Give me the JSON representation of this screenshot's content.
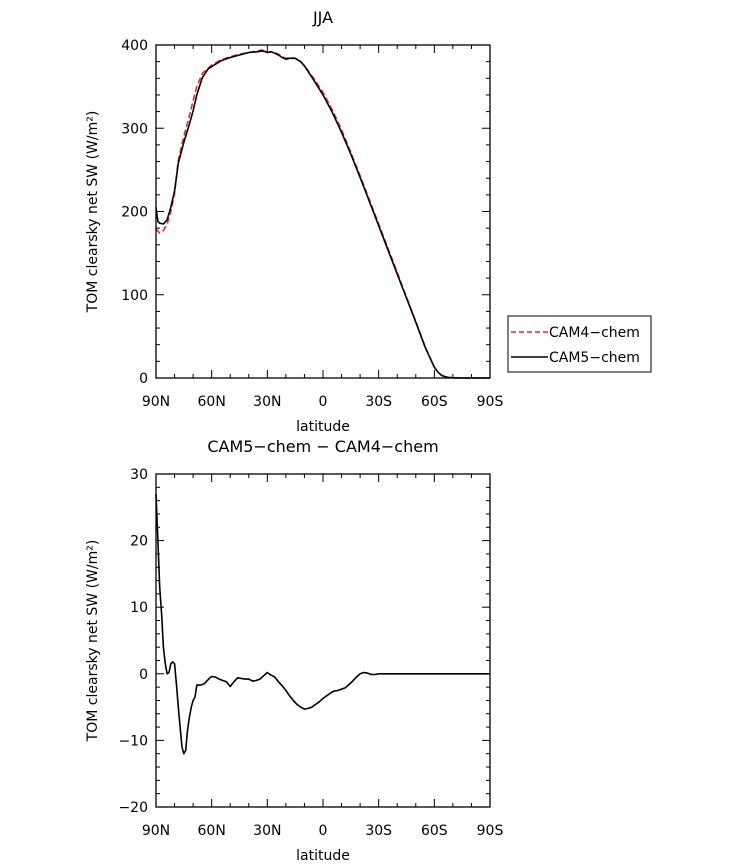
{
  "chart_data": [
    {
      "type": "line",
      "title": "JJA",
      "xlabel": "latitude",
      "ylabel": "TOM clearsky net SW (W/m²)",
      "xlim": [
        90,
        -90
      ],
      "ylim": [
        0,
        400
      ],
      "xticks": [
        {
          "value": 90,
          "label": "90N"
        },
        {
          "value": 60,
          "label": "60N"
        },
        {
          "value": 30,
          "label": "30N"
        },
        {
          "value": 0,
          "label": "0"
        },
        {
          "value": -30,
          "label": "30S"
        },
        {
          "value": -60,
          "label": "60S"
        },
        {
          "value": -90,
          "label": "90S"
        }
      ],
      "yticks": [
        {
          "value": 0,
          "label": "0"
        },
        {
          "value": 100,
          "label": "100"
        },
        {
          "value": 200,
          "label": "200"
        },
        {
          "value": 300,
          "label": "300"
        },
        {
          "value": 400,
          "label": "400"
        }
      ],
      "legend": "right",
      "series": [
        {
          "name": "CAM4−chem",
          "color": "#e8262b",
          "dash": "dashed",
          "x": [
            90,
            88,
            86,
            84,
            82,
            80,
            78,
            75,
            72,
            70,
            68,
            65,
            62,
            60,
            55,
            50,
            45,
            40,
            35,
            33,
            31,
            30,
            28,
            26,
            24,
            22,
            20,
            18,
            15,
            12,
            10,
            5,
            0,
            -5,
            -10,
            -15,
            -20,
            -25,
            -30,
            -35,
            -40,
            -45,
            -50,
            -55,
            -60,
            -62,
            -64,
            -66,
            -68,
            -70,
            -75,
            -80,
            -85,
            -90
          ],
          "y": [
            179,
            174,
            177,
            185,
            200,
            222,
            262,
            290,
            315,
            333,
            350,
            366,
            372,
            376,
            382,
            386,
            389,
            391,
            393,
            394,
            392,
            391,
            392,
            391,
            389,
            386,
            384,
            385,
            384,
            380,
            375,
            360,
            343,
            322,
            298,
            271,
            243,
            214,
            185,
            156,
            127,
            97,
            68,
            38,
            13,
            7,
            3,
            1.5,
            0.5,
            0.2,
            0,
            0,
            0,
            0
          ]
        },
        {
          "name": "CAM5−chem",
          "color": "#000000",
          "dash": "solid",
          "x": [
            90,
            89,
            88,
            86,
            84,
            82,
            80,
            78,
            75,
            72,
            70,
            68,
            65,
            62,
            60,
            55,
            50,
            45,
            40,
            35,
            33,
            31,
            30,
            28,
            26,
            24,
            22,
            20,
            18,
            15,
            12,
            10,
            5,
            0,
            -5,
            -10,
            -15,
            -20,
            -25,
            -30,
            -35,
            -40,
            -45,
            -50,
            -55,
            -60,
            -62,
            -64,
            -66,
            -68,
            -70,
            -75,
            -80,
            -85,
            -90
          ],
          "y": [
            205,
            188,
            186,
            185,
            190,
            205,
            225,
            258,
            283,
            305,
            321,
            340,
            361,
            371,
            374,
            381,
            385,
            388,
            391,
            392,
            393,
            392,
            391,
            392,
            390,
            388,
            385,
            383,
            384,
            384,
            380,
            375,
            358,
            340,
            319,
            295,
            269,
            241,
            212,
            183,
            154,
            125,
            96,
            67,
            37,
            13,
            7,
            3,
            1.5,
            0.5,
            0.2,
            0,
            0,
            0,
            0
          ]
        }
      ]
    },
    {
      "type": "line",
      "title": "CAM5−chem − CAM4−chem",
      "xlabel": "latitude",
      "ylabel": "TOM clearsky net SW (W/m²)",
      "xlim": [
        90,
        -90
      ],
      "ylim": [
        -20,
        30
      ],
      "xticks": [
        {
          "value": 90,
          "label": "90N"
        },
        {
          "value": 60,
          "label": "60N"
        },
        {
          "value": 30,
          "label": "30N"
        },
        {
          "value": 0,
          "label": "0"
        },
        {
          "value": -30,
          "label": "30S"
        },
        {
          "value": -60,
          "label": "60S"
        },
        {
          "value": -90,
          "label": "90S"
        }
      ],
      "yticks": [
        {
          "value": -20,
          "label": "−20"
        },
        {
          "value": -10,
          "label": "−10"
        },
        {
          "value": 0,
          "label": "0"
        },
        {
          "value": 10,
          "label": "10"
        },
        {
          "value": 20,
          "label": "20"
        },
        {
          "value": 30,
          "label": "30"
        }
      ],
      "series": [
        {
          "name": "",
          "color": "#000000",
          "dash": "solid",
          "x": [
            90,
            89,
            88,
            87,
            86,
            85,
            84,
            83,
            82,
            81,
            80,
            79,
            78,
            77,
            76,
            75,
            74,
            73,
            72,
            71,
            70,
            69,
            68,
            67,
            66,
            65,
            64,
            63,
            62,
            61,
            60,
            58,
            56,
            54,
            52,
            50,
            48,
            46,
            44,
            42,
            40,
            38,
            36,
            34,
            32,
            30,
            28,
            26,
            24,
            22,
            20,
            18,
            16,
            14,
            12,
            10,
            8,
            6,
            4,
            2,
            0,
            -2,
            -4,
            -6,
            -8,
            -10,
            -12,
            -14,
            -16,
            -18,
            -20,
            -22,
            -24,
            -26,
            -28,
            -30,
            -35,
            -40,
            -45,
            -50,
            -55,
            -58,
            -60,
            -65,
            -70,
            -80,
            -90
          ],
          "y": [
            27,
            20,
            13,
            9,
            4,
            1.5,
            0,
            0.2,
            1.5,
            1.8,
            1.5,
            -1.5,
            -5,
            -8,
            -11,
            -12,
            -11.5,
            -8.5,
            -6.5,
            -5,
            -4,
            -3.5,
            -1.7,
            -1.7,
            -1.7,
            -1.6,
            -1.5,
            -1.2,
            -0.9,
            -0.6,
            -0.4,
            -0.5,
            -0.8,
            -1.0,
            -1.2,
            -1.9,
            -1.2,
            -0.6,
            -0.7,
            -0.8,
            -0.8,
            -1.1,
            -1.0,
            -0.8,
            -0.3,
            0.2,
            -0.2,
            -0.5,
            -1.2,
            -1.8,
            -2.5,
            -3.3,
            -4.0,
            -4.6,
            -5.0,
            -5.3,
            -5.2,
            -5.0,
            -4.6,
            -4.2,
            -3.7,
            -3.3,
            -2.9,
            -2.6,
            -2.5,
            -2.3,
            -2.1,
            -1.6,
            -1.1,
            -0.5,
            0,
            0.2,
            0.1,
            -0.1,
            -0.1,
            0,
            0,
            0,
            0,
            0,
            0,
            0,
            0,
            0,
            0,
            0,
            0
          ]
        }
      ]
    }
  ]
}
